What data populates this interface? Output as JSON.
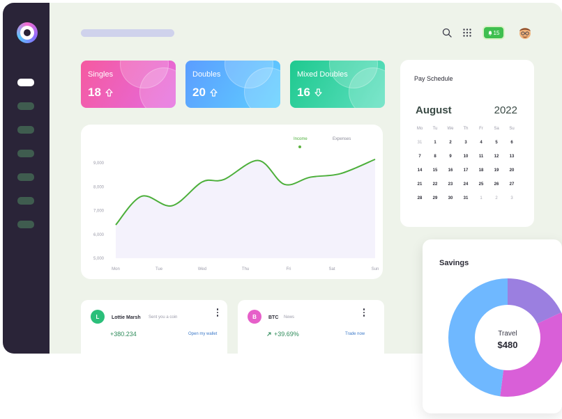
{
  "stats": [
    {
      "label": "Singles",
      "value": "18",
      "trend": "up",
      "gradient": [
        "#f55aa0",
        "#e46be0"
      ]
    },
    {
      "label": "Doubles",
      "value": "20",
      "trend": "up",
      "gradient": [
        "#5b9dff",
        "#5fd0ff"
      ]
    },
    {
      "label": "Mixed Doubles",
      "value": "16",
      "trend": "down",
      "gradient": [
        "#1fc98f",
        "#5ee0c0"
      ]
    }
  ],
  "notifications": {
    "count": "15",
    "icon": "bell-icon"
  },
  "chart_data": {
    "type": "line",
    "categories": [
      "Mon",
      "Tue",
      "Wed",
      "Thu",
      "Fri",
      "Sat",
      "Sun"
    ],
    "series": [
      {
        "name": "Income",
        "color": "#4caf3a",
        "x": [
          0,
          0.6,
          1.3,
          2.0,
          2.5,
          3.3,
          3.9,
          4.5,
          5.2,
          6.0
        ],
        "values": [
          6400,
          7600,
          7200,
          8200,
          8300,
          9100,
          8100,
          8400,
          8550,
          9150
        ]
      }
    ],
    "legend": [
      "Income",
      "Expenses"
    ],
    "yticks": [
      "9,000",
      "8,000",
      "7,000",
      "6,000",
      "5,000"
    ],
    "ylim": [
      5000,
      9000
    ],
    "grid": false
  },
  "schedule": {
    "title": "Pay Schedule",
    "month": "August",
    "year": "2022",
    "weekdays": [
      "Mo",
      "Tu",
      "We",
      "Th",
      "Fr",
      "Sa",
      "Su"
    ],
    "days": [
      {
        "d": "31",
        "muted": true
      },
      {
        "d": "1"
      },
      {
        "d": "2"
      },
      {
        "d": "3"
      },
      {
        "d": "4"
      },
      {
        "d": "5"
      },
      {
        "d": "6"
      },
      {
        "d": "7"
      },
      {
        "d": "8"
      },
      {
        "d": "9"
      },
      {
        "d": "10"
      },
      {
        "d": "11"
      },
      {
        "d": "12"
      },
      {
        "d": "13"
      },
      {
        "d": "14"
      },
      {
        "d": "15"
      },
      {
        "d": "16"
      },
      {
        "d": "17"
      },
      {
        "d": "18"
      },
      {
        "d": "19"
      },
      {
        "d": "20"
      },
      {
        "d": "21"
      },
      {
        "d": "22"
      },
      {
        "d": "23"
      },
      {
        "d": "24"
      },
      {
        "d": "25"
      },
      {
        "d": "26"
      },
      {
        "d": "27"
      },
      {
        "d": "28"
      },
      {
        "d": "29"
      },
      {
        "d": "30"
      },
      {
        "d": "31"
      },
      {
        "d": "1",
        "muted": true
      },
      {
        "d": "2",
        "muted": true
      },
      {
        "d": "3",
        "muted": true
      }
    ]
  },
  "transactions": [
    {
      "initial": "L",
      "name": "Lottie Marsh",
      "sub": "Sent you a coin",
      "amount": "+380.234",
      "link": "Open my wallet",
      "color": "#2bbf7a"
    },
    {
      "initial": "B",
      "name": "BTC",
      "sub": "News",
      "amount": "+39.69%",
      "link": "Trade now",
      "color": "#e65fc9"
    }
  ],
  "savings": {
    "title": "Savings",
    "center_label": "Travel",
    "center_value": "$480",
    "segments": [
      {
        "fraction": 0.18,
        "color": "#9b7fe0"
      },
      {
        "fraction": 0.34,
        "color": "#d95fd8"
      },
      {
        "fraction": 0.48,
        "color": "#6fb8ff"
      }
    ]
  }
}
